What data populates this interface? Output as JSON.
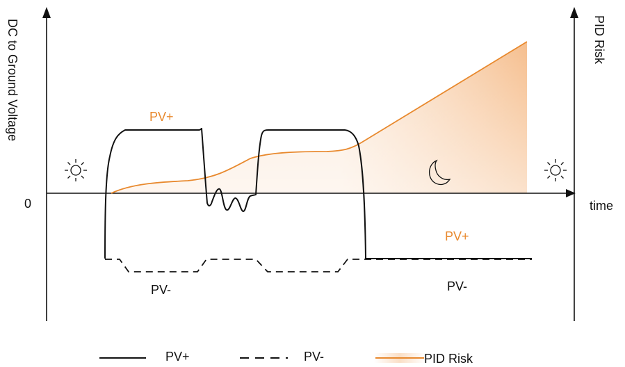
{
  "axes": {
    "left_axis_label": "DC to Ground Voltage",
    "right_axis_label": "PID Risk",
    "x_axis_label": "time",
    "zero_label": "0"
  },
  "annotations": {
    "pv_plus_day": "PV+",
    "pv_minus_day": "PV-",
    "pv_plus_night": "PV+",
    "pv_minus_night": "PV-"
  },
  "icons": {
    "left": "sun-icon",
    "middle": "moon-icon",
    "right": "sun-icon"
  },
  "legend": {
    "solid_label": "PV+",
    "dashed_label": "PV-",
    "risk_label": "PID Risk"
  },
  "colors": {
    "line": "#111111",
    "accent": "#e8892e",
    "accent_fill": "#f7c9a0"
  }
}
